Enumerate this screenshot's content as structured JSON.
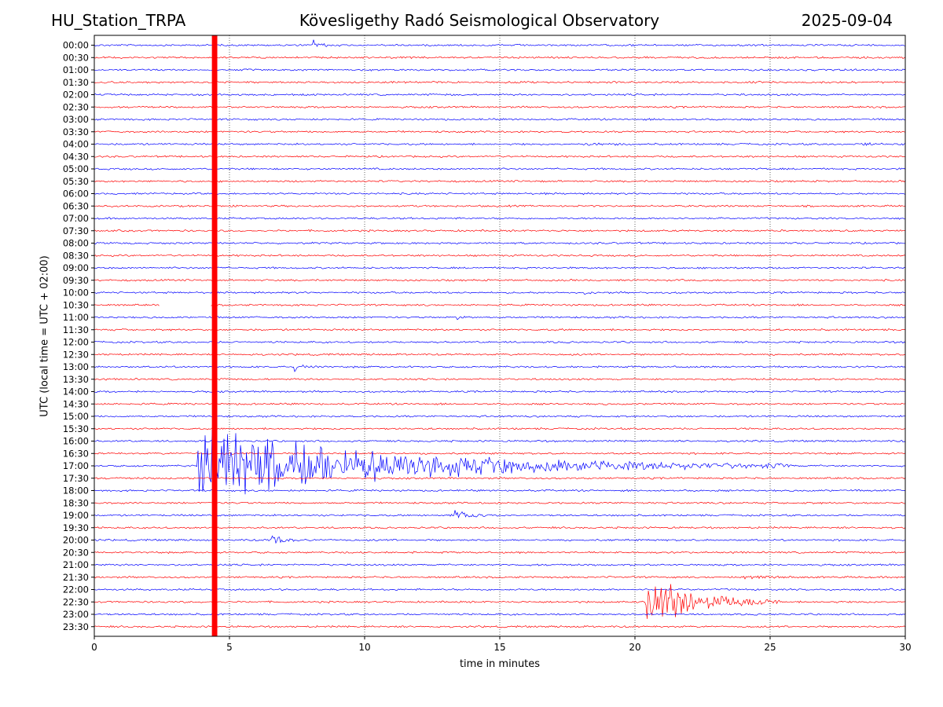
{
  "header": {
    "station": "HU_Station_TRPA",
    "title": "Kövesligethy Radó Seismological Observatory",
    "date": "2025-09-04"
  },
  "chart_data": {
    "type": "line",
    "title": "Kövesligethy Radó Seismological Observatory",
    "xlabel": "time in minutes",
    "ylabel": "UTC (local time = UTC + 02:00)",
    "xlim": [
      0,
      30
    ],
    "x_ticks": [
      0,
      5,
      10,
      15,
      20,
      25,
      30
    ],
    "grid": "vertical dotted lines at 5-minute ticks",
    "row_labels": [
      "00:00",
      "00:30",
      "01:00",
      "01:30",
      "02:00",
      "02:30",
      "03:00",
      "03:30",
      "04:00",
      "04:30",
      "05:00",
      "05:30",
      "06:00",
      "06:30",
      "07:00",
      "07:30",
      "08:00",
      "08:30",
      "09:00",
      "09:30",
      "10:00",
      "10:30",
      "11:00",
      "11:30",
      "12:00",
      "12:30",
      "13:00",
      "13:30",
      "14:00",
      "14:30",
      "15:00",
      "15:30",
      "16:00",
      "16:30",
      "17:00",
      "17:30",
      "18:00",
      "18:30",
      "19:00",
      "19:30",
      "20:00",
      "20:30",
      "21:00",
      "21:30",
      "22:00",
      "22:30",
      "23:00",
      "23:30"
    ],
    "colors": {
      "even_rows": "#0000ff",
      "odd_rows": "#ff0000"
    },
    "saturated_band": {
      "x_start": 4.35,
      "x_end": 4.55,
      "color": "#ff0000"
    },
    "gaps": [
      {
        "row": "10:30",
        "x_start": 2.4,
        "x_end": 4.3
      }
    ],
    "events": [
      {
        "row": "00:00",
        "onset": 8.1,
        "duration": 1.0,
        "amplitude": 0.7
      },
      {
        "row": "04:00",
        "onset": 18.0,
        "duration": 2.0,
        "amplitude": 0.25
      },
      {
        "row": "04:00",
        "onset": 28.4,
        "duration": 1.6,
        "amplitude": 0.3
      },
      {
        "row": "10:00",
        "onset": 18.1,
        "duration": 0.6,
        "amplitude": 0.5
      },
      {
        "row": "11:00",
        "onset": 13.4,
        "duration": 0.7,
        "amplitude": 0.4
      },
      {
        "row": "13:00",
        "onset": 7.4,
        "duration": 1.4,
        "amplitude": 0.6
      },
      {
        "row": "17:00",
        "onset": 3.8,
        "duration": 22.0,
        "amplitude": 5.5
      },
      {
        "row": "19:00",
        "onset": 13.3,
        "duration": 1.6,
        "amplitude": 0.8
      },
      {
        "row": "20:00",
        "onset": 6.5,
        "duration": 1.6,
        "amplitude": 0.7
      },
      {
        "row": "21:30",
        "onset": 24.0,
        "duration": 1.8,
        "amplitude": 0.35
      },
      {
        "row": "22:30",
        "onset": 20.4,
        "duration": 5.0,
        "amplitude": 5.0
      }
    ]
  }
}
